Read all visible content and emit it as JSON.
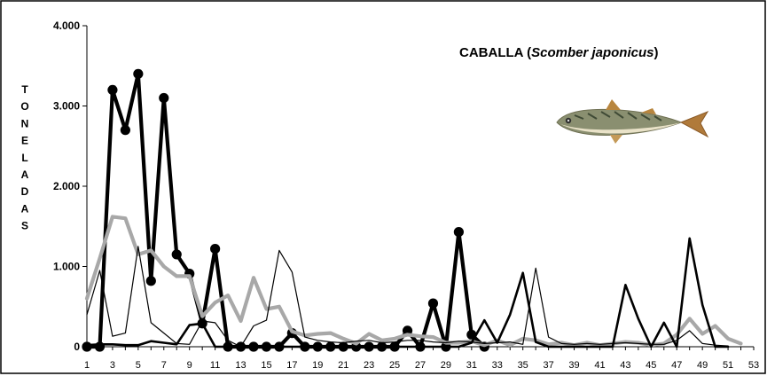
{
  "chart_data": {
    "type": "line",
    "title": "CABALLA (",
    "title_species": "Scomber japonicus",
    "title_close": ")",
    "ylabel": "TONELADAS",
    "xlabel": "",
    "ylim": [
      0,
      4000
    ],
    "yticks": [
      {
        "value": 0,
        "label": "0"
      },
      {
        "value": 1000,
        "label": "1.000"
      },
      {
        "value": 2000,
        "label": "2.000"
      },
      {
        "value": 3000,
        "label": "3.000"
      },
      {
        "value": 4000,
        "label": "4.000"
      }
    ],
    "xlim": [
      1,
      53
    ],
    "xticks": [
      1,
      3,
      5,
      7,
      9,
      11,
      13,
      15,
      17,
      19,
      21,
      23,
      25,
      27,
      29,
      31,
      33,
      35,
      37,
      39,
      41,
      43,
      45,
      47,
      49,
      51,
      53
    ],
    "grid": false,
    "legend": "none",
    "image": "mackerel-fish",
    "series": [
      {
        "style": "thick-black-markers",
        "color": "#000000",
        "x": [
          1,
          2,
          3,
          4,
          5,
          6,
          7,
          8,
          9,
          10,
          11,
          12,
          13,
          14,
          15,
          16,
          17,
          18,
          19,
          20,
          21,
          22,
          23,
          24,
          25,
          26,
          27,
          28,
          29,
          30,
          31,
          32
        ],
        "y": [
          0,
          0,
          3200,
          2700,
          3400,
          820,
          3100,
          1150,
          910,
          290,
          1220,
          0,
          0,
          0,
          0,
          0,
          170,
          0,
          0,
          0,
          0,
          0,
          0,
          0,
          0,
          200,
          0,
          540,
          0,
          1430,
          150,
          0
        ]
      },
      {
        "style": "thick-grey",
        "color": "#a8a8a8",
        "x": [
          1,
          2,
          3,
          4,
          5,
          6,
          7,
          8,
          9,
          10,
          11,
          12,
          13,
          14,
          15,
          16,
          17,
          18,
          19,
          20,
          21,
          22,
          23,
          24,
          25,
          26,
          27,
          28,
          29,
          30,
          31,
          32,
          33,
          34,
          35,
          36,
          37,
          38,
          39,
          40,
          41,
          42,
          43,
          44,
          45,
          46,
          47,
          48,
          49,
          50,
          51,
          52
        ],
        "y": [
          600,
          1100,
          1620,
          1600,
          1150,
          1200,
          1000,
          880,
          880,
          380,
          550,
          640,
          320,
          860,
          470,
          500,
          190,
          140,
          160,
          170,
          100,
          40,
          160,
          80,
          100,
          150,
          130,
          120,
          50,
          50,
          70,
          20,
          80,
          20,
          100,
          80,
          30,
          50,
          20,
          50,
          20,
          40,
          60,
          50,
          20,
          40,
          150,
          350,
          160,
          260,
          100,
          40
        ]
      },
      {
        "style": "medium-black",
        "color": "#000000",
        "x": [
          1,
          2,
          3,
          4,
          5,
          6,
          7,
          8,
          9,
          10,
          11,
          12,
          13,
          14,
          15,
          16,
          17,
          18,
          19,
          20,
          21,
          22,
          23,
          24,
          25,
          26,
          27,
          28,
          29,
          30,
          31,
          32,
          33,
          34,
          35,
          36,
          37,
          38,
          39,
          40,
          41,
          42,
          43,
          44,
          45,
          46,
          47,
          48,
          49,
          50,
          51
        ],
        "y": [
          20,
          30,
          30,
          20,
          20,
          70,
          50,
          30,
          270,
          290,
          0,
          0,
          0,
          0,
          0,
          0,
          0,
          0,
          0,
          0,
          0,
          0,
          0,
          0,
          0,
          0,
          0,
          0,
          0,
          0,
          50,
          330,
          50,
          400,
          920,
          60,
          0,
          0,
          0,
          0,
          0,
          0,
          770,
          350,
          0,
          300,
          0,
          1350,
          520,
          0,
          0
        ]
      },
      {
        "style": "thin-black",
        "color": "#000000",
        "x": [
          1,
          2,
          3,
          4,
          5,
          6,
          7,
          8,
          9,
          10,
          11,
          12,
          13,
          14,
          15,
          16,
          17,
          18,
          19,
          20,
          21,
          22,
          23,
          24,
          25,
          26,
          27,
          28,
          29,
          30,
          31,
          32,
          33,
          34,
          35,
          36,
          37,
          38,
          39,
          40,
          41,
          42,
          43,
          44,
          45,
          46,
          47,
          48,
          49,
          50,
          51
        ],
        "y": [
          400,
          950,
          130,
          170,
          1250,
          300,
          170,
          40,
          30,
          320,
          300,
          80,
          0,
          260,
          330,
          1200,
          930,
          120,
          80,
          60,
          50,
          70,
          80,
          50,
          60,
          80,
          80,
          60,
          50,
          70,
          60,
          40,
          50,
          60,
          30,
          980,
          120,
          40,
          30,
          40,
          30,
          40,
          50,
          40,
          30,
          30,
          80,
          200,
          40,
          20,
          10
        ]
      }
    ]
  }
}
